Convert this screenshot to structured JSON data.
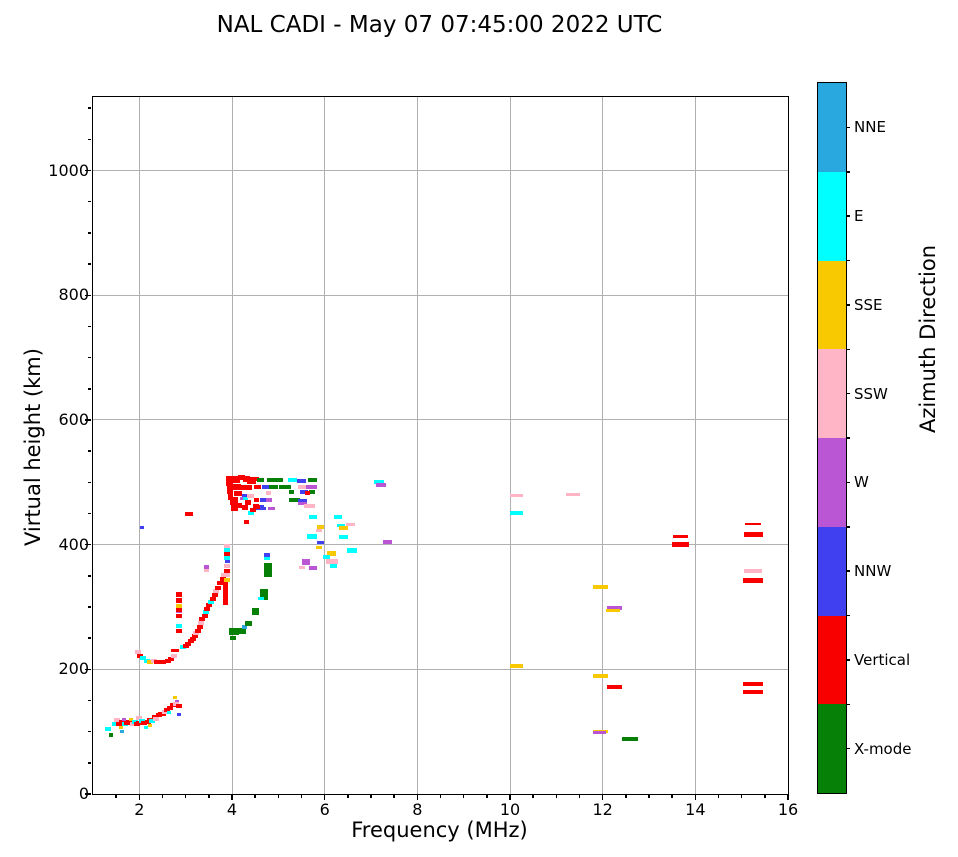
{
  "chart_data": {
    "type": "scatter",
    "title": "NAL CADI - May 07 07:45:00 2022 UTC",
    "xlabel": "Frequency (MHz)",
    "ylabel": "Virtual height (km)",
    "xlim": [
      1,
      16
    ],
    "ylim": [
      0,
      1118
    ],
    "xticks": [
      2,
      4,
      6,
      8,
      10,
      12,
      14,
      16
    ],
    "yticks": [
      0,
      200,
      400,
      600,
      800,
      1000
    ],
    "grid": true,
    "grid_color": "#b0b0b0",
    "colorbar": {
      "label": "Azimuth Direction",
      "categories": [
        "NNE",
        "E",
        "SSE",
        "SSW",
        "W",
        "NNW",
        "Vertical",
        "X-mode"
      ],
      "colors": {
        "NNE": "#29a8e0",
        "E": "#00ffff",
        "SSE": "#f8c800",
        "SSW": "#ffb5c5",
        "W": "#ba55d3",
        "NNW": "#4040f0",
        "Vertical": "#f80000",
        "X-mode": "#068006"
      }
    },
    "point_legend": "points are [freq_MHz, virtual_height_km, azimuth_category, width_px, height_px]",
    "points": [
      [
        1.33,
        105,
        "E",
        6,
        4
      ],
      [
        1.38,
        95,
        "X-mode",
        4,
        4
      ],
      [
        1.48,
        113,
        "E",
        6,
        4
      ],
      [
        1.52,
        118,
        "SSW",
        6,
        4
      ],
      [
        1.57,
        112,
        "Vertical",
        6,
        4
      ],
      [
        1.6,
        106,
        "SSE",
        4,
        3
      ],
      [
        1.62,
        100,
        "NNE",
        4,
        3
      ],
      [
        1.63,
        116,
        "Vertical",
        6,
        4
      ],
      [
        1.67,
        119,
        "W",
        4,
        3
      ],
      [
        1.7,
        112,
        "E",
        6,
        4
      ],
      [
        1.74,
        114,
        "Vertical",
        6,
        4
      ],
      [
        1.78,
        115,
        "Vertical",
        6,
        4
      ],
      [
        1.83,
        120,
        "SSE",
        4,
        3
      ],
      [
        1.86,
        113,
        "SSW",
        6,
        4
      ],
      [
        1.9,
        115,
        "E",
        6,
        4
      ],
      [
        1.95,
        113,
        "Vertical",
        6,
        4
      ],
      [
        2.0,
        122,
        "SSW",
        6,
        4
      ],
      [
        2.0,
        114,
        "Vertical",
        6,
        4
      ],
      [
        2.06,
        117,
        "E",
        6,
        4
      ],
      [
        2.1,
        114,
        "Vertical",
        6,
        4
      ],
      [
        2.15,
        106,
        "E",
        4,
        3
      ],
      [
        2.18,
        116,
        "Vertical",
        6,
        4
      ],
      [
        2.22,
        119,
        "Vertical",
        6,
        4
      ],
      [
        2.24,
        110,
        "SSE",
        4,
        3
      ],
      [
        2.28,
        117,
        "E",
        6,
        4
      ],
      [
        2.33,
        124,
        "Vertical",
        6,
        4
      ],
      [
        2.37,
        121,
        "SSW",
        6,
        4
      ],
      [
        2.42,
        126,
        "Vertical",
        6,
        4
      ],
      [
        2.47,
        128,
        "Vertical",
        6,
        4
      ],
      [
        2.52,
        129,
        "Vertical",
        6,
        4
      ],
      [
        2.56,
        132,
        "SSW",
        6,
        4
      ],
      [
        2.6,
        134,
        "Vertical",
        6,
        4
      ],
      [
        2.64,
        131,
        "E",
        4,
        3
      ],
      [
        2.67,
        138,
        "Vertical",
        6,
        4
      ],
      [
        2.72,
        142,
        "Vertical",
        6,
        4
      ],
      [
        2.77,
        155,
        "SSE",
        4,
        3
      ],
      [
        2.82,
        149,
        "W",
        4,
        3
      ],
      [
        2.79,
        145,
        "SSW",
        6,
        4
      ],
      [
        2.85,
        128,
        "NNW",
        4,
        3
      ],
      [
        2.86,
        141,
        "Vertical",
        6,
        4
      ],
      [
        1.98,
        228,
        "SSW",
        6,
        4
      ],
      [
        2.02,
        222,
        "Vertical",
        6,
        4
      ],
      [
        2.08,
        218,
        "E",
        6,
        4
      ],
      [
        2.16,
        214,
        "E",
        6,
        4
      ],
      [
        2.24,
        212,
        "SSE",
        6,
        4
      ],
      [
        2.31,
        214,
        "SSW",
        6,
        4
      ],
      [
        2.38,
        212,
        "Vertical",
        6,
        4
      ],
      [
        2.45,
        211,
        "Vertical",
        6,
        4
      ],
      [
        2.52,
        212,
        "Vertical",
        6,
        4
      ],
      [
        2.59,
        214,
        "SSE",
        4,
        3
      ],
      [
        2.62,
        213,
        "Vertical",
        6,
        4
      ],
      [
        2.68,
        217,
        "Vertical",
        6,
        4
      ],
      [
        2.74,
        221,
        "SSW",
        6,
        4
      ],
      [
        2.76,
        230,
        "Vertical",
        8,
        3
      ],
      [
        2.85,
        320,
        "Vertical",
        6,
        5
      ],
      [
        2.85,
        310,
        "Vertical",
        6,
        5
      ],
      [
        2.85,
        301,
        "SSE",
        6,
        4
      ],
      [
        2.85,
        293,
        "W",
        6,
        4
      ],
      [
        2.85,
        295,
        "Vertical",
        6,
        4
      ],
      [
        2.85,
        287,
        "SSE",
        6,
        3
      ],
      [
        2.85,
        285,
        "Vertical",
        6,
        4
      ],
      [
        2.85,
        270,
        "E",
        6,
        4
      ],
      [
        2.85,
        262,
        "Vertical",
        6,
        4
      ],
      [
        2.95,
        235,
        "E",
        6,
        4
      ],
      [
        3.0,
        238,
        "Vertical",
        6,
        4
      ],
      [
        3.06,
        240,
        "Vertical",
        6,
        4
      ],
      [
        3.11,
        245,
        "Vertical",
        6,
        4
      ],
      [
        3.16,
        249,
        "Vertical",
        6,
        4
      ],
      [
        3.21,
        253,
        "Vertical",
        6,
        4
      ],
      [
        3.23,
        258,
        "SSW",
        6,
        4
      ],
      [
        3.26,
        262,
        "Vertical",
        6,
        4
      ],
      [
        3.31,
        268,
        "Vertical",
        6,
        4
      ],
      [
        3.33,
        275,
        "SSW",
        6,
        4
      ],
      [
        3.36,
        281,
        "Vertical",
        6,
        4
      ],
      [
        3.41,
        286,
        "Vertical",
        6,
        4
      ],
      [
        3.43,
        292,
        "E",
        6,
        4
      ],
      [
        3.46,
        297,
        "Vertical",
        6,
        4
      ],
      [
        3.51,
        303,
        "Vertical",
        6,
        4
      ],
      [
        3.55,
        308,
        "E",
        6,
        4
      ],
      [
        3.58,
        313,
        "Vertical",
        6,
        4
      ],
      [
        3.63,
        319,
        "Vertical",
        6,
        4
      ],
      [
        3.66,
        325,
        "SSW",
        6,
        4
      ],
      [
        3.7,
        331,
        "Vertical",
        6,
        4
      ],
      [
        3.75,
        338,
        "Vertical",
        6,
        4
      ],
      [
        3.8,
        345,
        "Vertical",
        6,
        4
      ],
      [
        3.83,
        352,
        "SSW",
        6,
        4
      ],
      [
        3.87,
        322,
        "Vertical",
        5,
        24
      ],
      [
        3.9,
        398,
        "SSW",
        6,
        4
      ],
      [
        3.9,
        391,
        "E",
        6,
        4
      ],
      [
        3.9,
        385,
        "Vertical",
        6,
        4
      ],
      [
        3.9,
        378,
        "E",
        6,
        4
      ],
      [
        3.9,
        373,
        "NNW",
        5,
        3
      ],
      [
        3.9,
        366,
        "SSW",
        6,
        4
      ],
      [
        3.9,
        358,
        "Vertical",
        6,
        4
      ],
      [
        3.9,
        351,
        "SSW",
        6,
        4
      ],
      [
        3.9,
        344,
        "SSE",
        6,
        4
      ],
      [
        3.45,
        364,
        "W",
        5,
        4
      ],
      [
        3.45,
        359,
        "SSW",
        5,
        3
      ],
      [
        3.08,
        449,
        "Vertical",
        8,
        4
      ],
      [
        2.05,
        428,
        "NNW",
        4,
        3
      ],
      [
        3.95,
        502,
        "Vertical",
        7,
        10
      ],
      [
        3.95,
        488,
        "Vertical",
        6,
        8
      ],
      [
        3.97,
        477,
        "Vertical",
        5,
        6
      ],
      [
        4.07,
        505,
        "Vertical",
        9,
        7
      ],
      [
        4.2,
        507,
        "Vertical",
        7,
        5
      ],
      [
        4.32,
        505,
        "Vertical",
        7,
        6
      ],
      [
        4.42,
        503,
        "Vertical",
        9,
        7
      ],
      [
        4.07,
        493,
        "Vertical",
        11,
        6
      ],
      [
        4.22,
        491,
        "Vertical",
        5,
        5
      ],
      [
        4.36,
        492,
        "Vertical",
        7,
        5
      ],
      [
        4.12,
        482,
        "Vertical",
        8,
        5
      ],
      [
        4.05,
        470,
        "Vertical",
        8,
        8
      ],
      [
        4.05,
        459,
        "Vertical",
        7,
        7
      ],
      [
        4.15,
        463,
        "Vertical",
        6,
        5
      ],
      [
        4.28,
        479,
        "NNW",
        6,
        3
      ],
      [
        4.22,
        474,
        "W",
        5,
        3
      ],
      [
        4.3,
        474,
        "E",
        5,
        3
      ],
      [
        4.35,
        468,
        "Vertical",
        6,
        5
      ],
      [
        4.28,
        460,
        "Vertical",
        6,
        5
      ],
      [
        4.4,
        478,
        "SSW",
        7,
        4
      ],
      [
        4.4,
        450,
        "E",
        6,
        4
      ],
      [
        4.6,
        460,
        "NNW",
        8,
        5
      ],
      [
        4.85,
        458,
        "W",
        7,
        3
      ],
      [
        4.32,
        437,
        "Vertical",
        5,
        4
      ],
      [
        4.45,
        455,
        "Vertical",
        6,
        4
      ],
      [
        4.52,
        462,
        "Vertical",
        6,
        4
      ],
      [
        4.52,
        505,
        "Vertical",
        6,
        4
      ],
      [
        4.62,
        503,
        "X-mode",
        7,
        4
      ],
      [
        4.92,
        503,
        "X-mode",
        16,
        4
      ],
      [
        5.3,
        503,
        "E",
        9,
        4
      ],
      [
        5.5,
        502,
        "NNW",
        9,
        4
      ],
      [
        5.73,
        503,
        "X-mode",
        9,
        4
      ],
      [
        4.55,
        493,
        "Vertical",
        7,
        4
      ],
      [
        4.72,
        493,
        "NNW",
        7,
        4
      ],
      [
        4.9,
        493,
        "X-mode",
        9,
        4
      ],
      [
        5.15,
        493,
        "X-mode",
        12,
        4
      ],
      [
        5.5,
        493,
        "SSW",
        8,
        4
      ],
      [
        5.72,
        492,
        "W",
        11,
        4
      ],
      [
        4.78,
        483,
        "SSW",
        5,
        4
      ],
      [
        5.28,
        485,
        "X-mode",
        5,
        4
      ],
      [
        5.55,
        485,
        "NNW",
        8,
        4
      ],
      [
        5.73,
        485,
        "X-mode",
        6,
        4
      ],
      [
        4.52,
        472,
        "Vertical",
        5,
        4
      ],
      [
        4.66,
        472,
        "NNW",
        6,
        4
      ],
      [
        4.8,
        472,
        "W",
        6,
        4
      ],
      [
        5.35,
        472,
        "X-mode",
        11,
        4
      ],
      [
        5.62,
        483,
        "Vertical",
        5,
        4
      ],
      [
        4.53,
        460,
        "Vertical",
        6,
        4
      ],
      [
        4.66,
        458,
        "NNW",
        6,
        3
      ],
      [
        5.52,
        470,
        "NNW",
        9,
        3
      ],
      [
        5.52,
        466,
        "W",
        9,
        3
      ],
      [
        5.68,
        462,
        "SSW",
        11,
        4
      ],
      [
        5.75,
        444,
        "E",
        8,
        4
      ],
      [
        6.28,
        444,
        "E",
        8,
        4
      ],
      [
        5.9,
        428,
        "SSE",
        7,
        4
      ],
      [
        5.88,
        423,
        "SSW",
        6,
        3
      ],
      [
        5.72,
        413,
        "E",
        10,
        5
      ],
      [
        5.9,
        404,
        "NNW",
        7,
        3
      ],
      [
        5.88,
        395,
        "SSE",
        6,
        3
      ],
      [
        6.35,
        431,
        "E",
        8,
        3
      ],
      [
        6.4,
        426,
        "SSE",
        9,
        4
      ],
      [
        6.55,
        432,
        "SSW",
        9,
        3
      ],
      [
        6.4,
        412,
        "E",
        9,
        4
      ],
      [
        6.6,
        391,
        "E",
        10,
        5
      ],
      [
        6.15,
        386,
        "SSE",
        9,
        5
      ],
      [
        6.05,
        380,
        "E",
        7,
        4
      ],
      [
        6.15,
        373,
        "SSW",
        12,
        5
      ],
      [
        6.2,
        366,
        "E",
        7,
        4
      ],
      [
        5.6,
        372,
        "W",
        8,
        6
      ],
      [
        5.75,
        363,
        "W",
        8,
        4
      ],
      [
        5.5,
        364,
        "SSW",
        6,
        3
      ],
      [
        4.05,
        260,
        "X-mode",
        10,
        7
      ],
      [
        4.22,
        262,
        "X-mode",
        8,
        6
      ],
      [
        4.02,
        251,
        "X-mode",
        6,
        4
      ],
      [
        4.28,
        268,
        "NNE",
        5,
        4
      ],
      [
        4.35,
        274,
        "X-mode",
        7,
        5
      ],
      [
        4.5,
        292,
        "X-mode",
        7,
        7
      ],
      [
        4.68,
        320,
        "X-mode",
        8,
        11
      ],
      [
        4.62,
        313,
        "E",
        6,
        3
      ],
      [
        4.78,
        360,
        "X-mode",
        8,
        14
      ],
      [
        4.75,
        377,
        "E",
        6,
        3
      ],
      [
        4.75,
        383,
        "NNW",
        6,
        4
      ],
      [
        7.18,
        500,
        "E",
        10,
        4
      ],
      [
        7.22,
        495,
        "W",
        10,
        4
      ],
      [
        7.35,
        405,
        "W",
        9,
        4
      ],
      [
        10.15,
        478,
        "SSW",
        13,
        3
      ],
      [
        11.35,
        480,
        "SSW",
        14,
        3
      ],
      [
        10.15,
        450,
        "E",
        13,
        4
      ],
      [
        10.15,
        205,
        "SSE",
        13,
        4
      ],
      [
        11.95,
        332,
        "SSE",
        15,
        4
      ],
      [
        12.25,
        299,
        "W",
        15,
        4
      ],
      [
        12.22,
        294,
        "SSE",
        14,
        3
      ],
      [
        11.95,
        190,
        "SSE",
        15,
        4
      ],
      [
        12.25,
        172,
        "Vertical",
        15,
        4
      ],
      [
        11.95,
        101,
        "SSE",
        15,
        3
      ],
      [
        11.93,
        98,
        "W",
        13,
        3
      ],
      [
        12.6,
        89,
        "X-mode",
        16,
        4
      ],
      [
        13.67,
        413,
        "Vertical",
        15,
        3
      ],
      [
        13.67,
        400,
        "Vertical",
        17,
        5
      ],
      [
        15.25,
        433,
        "Vertical",
        16,
        2
      ],
      [
        15.25,
        417,
        "Vertical",
        19,
        5
      ],
      [
        15.25,
        358,
        "SSW",
        18,
        4
      ],
      [
        15.25,
        342,
        "Vertical",
        20,
        5
      ],
      [
        15.25,
        177,
        "Vertical",
        20,
        4
      ],
      [
        15.25,
        164,
        "Vertical",
        20,
        4
      ]
    ]
  }
}
